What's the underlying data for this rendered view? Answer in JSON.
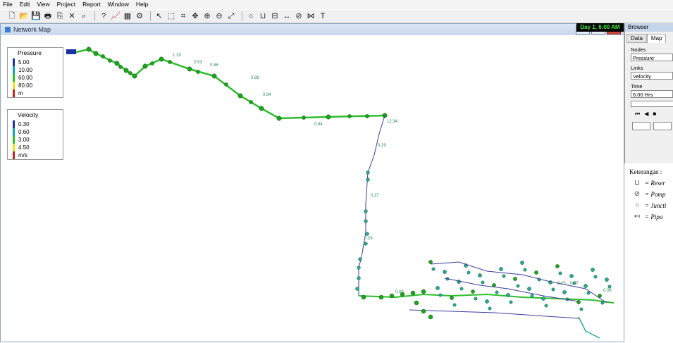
{
  "menu": [
    "File",
    "Edit",
    "View",
    "Project",
    "Report",
    "Window",
    "Help"
  ],
  "toolbar_icons": [
    "new-file-icon",
    "open-icon",
    "save-icon",
    "print-icon",
    "copy-icon",
    "delete-icon",
    "find-icon",
    "sep",
    "query-icon",
    "graph-icon",
    "table-icon",
    "options-icon",
    "sep",
    "select-icon",
    "vertex-icon",
    "select-region-icon",
    "pan-icon",
    "zoom-in-icon",
    "zoom-out-icon",
    "full-extent-icon",
    "sep",
    "junction-icon",
    "reservoir-icon",
    "tank-icon",
    "pipe-icon",
    "pump-icon",
    "valve-icon",
    "label-icon"
  ],
  "map_window": {
    "title": "Network Map",
    "day_time": "Day 1, 6:00 AM"
  },
  "pressure_legend": {
    "title": "Pressure",
    "entries": [
      {
        "label": "5.00",
        "color": "#1c2fa8"
      },
      {
        "label": "10.00",
        "color": "#0aa7ac"
      },
      {
        "label": "60.00",
        "color": "#26c12a"
      },
      {
        "label": "80.00",
        "color": "#e9e317"
      },
      {
        "label": "m",
        "color": "#c9231f"
      }
    ]
  },
  "velocity_legend": {
    "title": "Velocity",
    "entries": [
      {
        "label": "0.30",
        "color": "#1c2fa8"
      },
      {
        "label": "0.60",
        "color": "#0aa7ac"
      },
      {
        "label": "3.00",
        "color": "#26c12a"
      },
      {
        "label": "4.50",
        "color": "#e9e317"
      },
      {
        "label": "m/s",
        "color": "#c9231f"
      }
    ]
  },
  "browser": {
    "title": "Browser",
    "tabs": [
      "Data",
      "Map"
    ],
    "nodes_label": "Nodes",
    "nodes_value": "Pressure",
    "links_label": "Links",
    "links_value": "Velocity",
    "time_label": "Time",
    "time_value": "6:00 Hrs"
  },
  "keterangan": {
    "title": "Keterangan :",
    "items": [
      {
        "icon": "reservoir-icon",
        "text": "= Reser"
      },
      {
        "icon": "pump-icon",
        "text": "= Pomp"
      },
      {
        "icon": "junction-icon",
        "text": "= Juncti"
      },
      {
        "icon": "pipe-icon",
        "text": "= Pipa"
      }
    ]
  },
  "map_labels": [
    {
      "text": "1.29"
    },
    {
      "text": "2.53"
    },
    {
      "text": "0.86"
    },
    {
      "text": "0.88"
    },
    {
      "text": "0.84"
    },
    {
      "text": "0.94"
    },
    {
      "text": "12.34"
    },
    {
      "text": "0.29"
    },
    {
      "text": "0.27"
    },
    {
      "text": "0.26"
    },
    {
      "text": "0.09"
    },
    {
      "text": "0.05"
    },
    {
      "text": "0.07"
    },
    {
      "text": "0.06"
    }
  ],
  "colors": {
    "main_pipe": "#2fbe2f",
    "low_pipe": "#3b3f9a",
    "node_green": "#1fa31f",
    "node_teal": "#2aa7a3"
  }
}
